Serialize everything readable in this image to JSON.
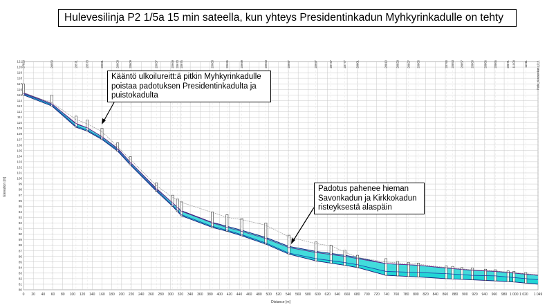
{
  "title": "Hulevesilinja P2 1/5a 15 min sateella, kun yhteys Presidentinkadun Myhkyrinkadulle on tehty",
  "annotations": [
    {
      "text": "Kääntö ulkoilureitt:ä pitkin Myhkyrinkadulle\npoistaa padotuksen Presidentinkadulta ja\npuistokadulta"
    },
    {
      "text": "Padotus pahenee hieman\nSavonkadun ja Kirkkokadun\nristeyksestä alaspäin"
    }
  ],
  "chart_data": {
    "type": "line",
    "title": "Hulevesilinja P2 1/5a 15 min sateella, kun yhteys Presidentinkadun Myhkyrinkadulle on tehty",
    "xlabel": "Distance [m]",
    "ylabel": "Elevation [m]",
    "xlim": [
      0,
      1049
    ],
    "ylim": [
      80,
      121
    ],
    "grid": true,
    "x_ticks": [
      0,
      20,
      40,
      60,
      80,
      100,
      120,
      140,
      160,
      180,
      200,
      220,
      240,
      260,
      280,
      300,
      320,
      340,
      360,
      380,
      400,
      420,
      440,
      460,
      480,
      500,
      520,
      540,
      560,
      580,
      600,
      620,
      640,
      660,
      680,
      700,
      720,
      740,
      760,
      780,
      800,
      820,
      840,
      860,
      880,
      900,
      920,
      940,
      960,
      980,
      1000,
      1020,
      1049
    ],
    "x_tick_labels": [
      "0",
      "20",
      "40",
      "60",
      "80",
      "100",
      "120",
      "140",
      "160",
      "180",
      "200",
      "220",
      "240",
      "260",
      "280",
      "300",
      "320",
      "340",
      "360",
      "380",
      "400",
      "420",
      "440",
      "460",
      "480",
      "500",
      "520",
      "540",
      "560",
      "580",
      "600",
      "620",
      "640",
      "660",
      "680",
      "700",
      "720",
      "740",
      "760",
      "780",
      "800",
      "820",
      "840",
      "860",
      "880",
      "900",
      "920",
      "940",
      "960",
      "980",
      "1 000",
      "1 020",
      "1 049"
    ],
    "node_labels": [
      {
        "x": 0,
        "label": "27023"
      },
      {
        "x": 58,
        "label": "28550"
      },
      {
        "x": 107,
        "label": "28571"
      },
      {
        "x": 130,
        "label": "28573"
      },
      {
        "x": 160,
        "label": "28591"
      },
      {
        "x": 192,
        "label": "28603"
      },
      {
        "x": 218,
        "label": "28609"
      },
      {
        "x": 271,
        "label": "28657"
      },
      {
        "x": 304,
        "label": "28669"
      },
      {
        "x": 314,
        "label": "28673"
      },
      {
        "x": 322,
        "label": "28675"
      },
      {
        "x": 385,
        "label": "28683"
      },
      {
        "x": 415,
        "label": "28695"
      },
      {
        "x": 445,
        "label": "28699"
      },
      {
        "x": 494,
        "label": "28663"
      },
      {
        "x": 541,
        "label": "28697"
      },
      {
        "x": 596,
        "label": "28697"
      },
      {
        "x": 627,
        "label": "28747"
      },
      {
        "x": 655,
        "label": "28777"
      },
      {
        "x": 681,
        "label": "28801"
      },
      {
        "x": 739,
        "label": "28810"
      },
      {
        "x": 763,
        "label": "28823"
      },
      {
        "x": 785,
        "label": "28827"
      },
      {
        "x": 805,
        "label": "28865"
      },
      {
        "x": 862,
        "label": "28790"
      },
      {
        "x": 875,
        "label": "28853"
      },
      {
        "x": 894,
        "label": "28857"
      },
      {
        "x": 915,
        "label": "28860"
      },
      {
        "x": 942,
        "label": "28866"
      },
      {
        "x": 962,
        "label": "28865"
      },
      {
        "x": 988,
        "label": "28871"
      },
      {
        "x": 1000,
        "label": "11009"
      },
      {
        "x": 1024,
        "label": "11011"
      },
      {
        "x": 1049,
        "label": "Putki_Kuusenkatu_2_1"
      }
    ],
    "series": [
      {
        "values": [
          [
            0,
            115.2
          ],
          [
            58,
            113.2
          ],
          [
            107,
            109.4
          ],
          [
            130,
            108.7
          ],
          [
            160,
            107.2
          ],
          [
            192,
            105.1
          ],
          [
            218,
            102.6
          ],
          [
            271,
            97.9
          ],
          [
            304,
            95.2
          ],
          [
            322,
            93.5
          ],
          [
            385,
            91.4
          ],
          [
            415,
            90.7
          ],
          [
            445,
            89.9
          ],
          [
            494,
            88.4
          ],
          [
            541,
            86.6
          ],
          [
            596,
            85.6
          ],
          [
            655,
            84.9
          ],
          [
            681,
            84.5
          ],
          [
            739,
            83.3
          ],
          [
            805,
            83.1
          ],
          [
            862,
            82.9
          ],
          [
            915,
            82.6
          ],
          [
            962,
            82.5
          ],
          [
            1000,
            82.2
          ],
          [
            1024,
            82.0
          ],
          [
            1049,
            81.8
          ]
        ]
      },
      {
        "values": [
          [
            0,
            115.3
          ],
          [
            58,
            113.4
          ],
          [
            107,
            109.9
          ],
          [
            130,
            109.1
          ],
          [
            160,
            107.5
          ],
          [
            192,
            105.3
          ],
          [
            218,
            102.9
          ],
          [
            271,
            98.1
          ],
          [
            304,
            95.6
          ],
          [
            322,
            94.1
          ],
          [
            385,
            92.0
          ],
          [
            415,
            91.2
          ],
          [
            445,
            90.5
          ],
          [
            494,
            89.2
          ],
          [
            541,
            87.6
          ],
          [
            596,
            86.7
          ],
          [
            655,
            86.0
          ],
          [
            681,
            85.6
          ],
          [
            739,
            84.7
          ],
          [
            805,
            84.4
          ],
          [
            862,
            83.9
          ],
          [
            915,
            83.5
          ],
          [
            962,
            83.3
          ],
          [
            1000,
            83.0
          ],
          [
            1024,
            82.8
          ],
          [
            1049,
            82.6
          ]
        ]
      },
      {
        "values": [
          [
            0,
            115.4
          ],
          [
            58,
            113.6
          ],
          [
            107,
            110.6
          ],
          [
            130,
            109.8
          ],
          [
            160,
            108.4
          ],
          [
            192,
            105.7
          ],
          [
            218,
            103.4
          ],
          [
            271,
            98.7
          ],
          [
            304,
            96.6
          ],
          [
            322,
            95.7
          ],
          [
            385,
            93.9
          ],
          [
            415,
            93.0
          ],
          [
            445,
            92.6
          ],
          [
            494,
            91.6
          ],
          [
            541,
            89.5
          ],
          [
            596,
            88.3
          ],
          [
            627,
            87.9
          ],
          [
            655,
            86.8
          ],
          [
            681,
            85.8
          ],
          [
            739,
            85.0
          ],
          [
            805,
            84.6
          ],
          [
            862,
            84.0
          ],
          [
            915,
            83.6
          ],
          [
            962,
            83.4
          ],
          [
            1000,
            83.1
          ],
          [
            1024,
            82.9
          ],
          [
            1049,
            82.7
          ]
        ]
      }
    ],
    "pipe": {
      "invert": [
        [
          0,
          115.0
        ],
        [
          58,
          113.0
        ],
        [
          107,
          109.2
        ],
        [
          130,
          108.5
        ],
        [
          160,
          107.0
        ],
        [
          192,
          104.9
        ],
        [
          218,
          102.4
        ],
        [
          271,
          97.7
        ],
        [
          304,
          95.0
        ],
        [
          322,
          93.3
        ],
        [
          385,
          91.2
        ],
        [
          415,
          90.5
        ],
        [
          445,
          89.7
        ],
        [
          494,
          88.2
        ],
        [
          541,
          86.4
        ],
        [
          596,
          85.2
        ],
        [
          655,
          84.4
        ],
        [
          681,
          84.0
        ],
        [
          739,
          82.6
        ],
        [
          805,
          82.3
        ],
        [
          862,
          82.0
        ],
        [
          915,
          81.8
        ],
        [
          962,
          81.6
        ],
        [
          1000,
          81.4
        ],
        [
          1024,
          81.2
        ],
        [
          1049,
          81.0
        ]
      ],
      "crown": [
        [
          0,
          115.4
        ],
        [
          58,
          113.4
        ],
        [
          107,
          109.8
        ],
        [
          130,
          109.1
        ],
        [
          160,
          107.5
        ],
        [
          192,
          105.4
        ],
        [
          218,
          102.9
        ],
        [
          271,
          98.2
        ],
        [
          304,
          95.6
        ],
        [
          322,
          94.2
        ],
        [
          385,
          92.1
        ],
        [
          415,
          91.4
        ],
        [
          445,
          90.7
        ],
        [
          494,
          89.4
        ],
        [
          541,
          87.8
        ],
        [
          596,
          86.9
        ],
        [
          655,
          86.2
        ],
        [
          681,
          85.8
        ],
        [
          739,
          84.7
        ],
        [
          805,
          84.4
        ],
        [
          862,
          83.9
        ],
        [
          915,
          83.5
        ],
        [
          962,
          83.3
        ],
        [
          1000,
          83.0
        ],
        [
          1024,
          82.8
        ],
        [
          1049,
          82.6
        ]
      ]
    },
    "manholes": [
      {
        "x": 0,
        "top": 117.0
      },
      {
        "x": 58,
        "top": 115.0
      },
      {
        "x": 107,
        "top": 111.2
      },
      {
        "x": 130,
        "top": 110.5
      },
      {
        "x": 160,
        "top": 109.0
      },
      {
        "x": 192,
        "top": 106.4
      },
      {
        "x": 218,
        "top": 103.9
      },
      {
        "x": 271,
        "top": 99.2
      },
      {
        "x": 304,
        "top": 97.0
      },
      {
        "x": 314,
        "top": 96.3
      },
      {
        "x": 322,
        "top": 95.8
      },
      {
        "x": 385,
        "top": 94.0
      },
      {
        "x": 415,
        "top": 93.5
      },
      {
        "x": 445,
        "top": 92.8
      },
      {
        "x": 494,
        "top": 92.0
      },
      {
        "x": 541,
        "top": 89.8
      },
      {
        "x": 596,
        "top": 88.6
      },
      {
        "x": 627,
        "top": 88.0
      },
      {
        "x": 655,
        "top": 87.1
      },
      {
        "x": 681,
        "top": 86.2
      },
      {
        "x": 739,
        "top": 85.6
      },
      {
        "x": 763,
        "top": 85.1
      },
      {
        "x": 785,
        "top": 84.9
      },
      {
        "x": 805,
        "top": 84.8
      },
      {
        "x": 862,
        "top": 84.3
      },
      {
        "x": 875,
        "top": 84.2
      },
      {
        "x": 894,
        "top": 84.0
      },
      {
        "x": 915,
        "top": 83.9
      },
      {
        "x": 942,
        "top": 83.7
      },
      {
        "x": 962,
        "top": 83.6
      },
      {
        "x": 988,
        "top": 83.4
      },
      {
        "x": 1000,
        "top": 83.3
      },
      {
        "x": 1024,
        "top": 83.1
      }
    ],
    "steps": [
      {
        "x": 739,
        "from": 84.0,
        "to": 82.6
      }
    ],
    "colors": {
      "water": "#22d6d6",
      "pipe_line": "#1a1a7a",
      "series_lines": [
        "#1c3fa6",
        "#6b2a8a",
        "#8a8a8a"
      ],
      "grid": "#c8c8c8",
      "manhole": "#333333"
    }
  }
}
